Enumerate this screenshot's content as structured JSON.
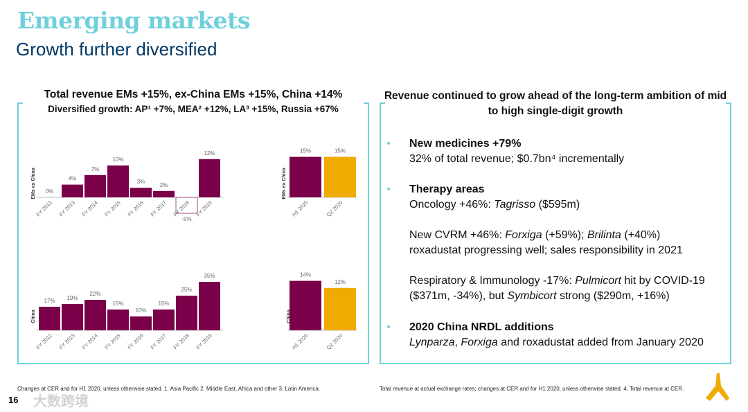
{
  "slide": {
    "title": "Emerging markets",
    "subtitle": "Growth further diversified",
    "page_number": "16",
    "watermark": "大数跨境"
  },
  "left": {
    "heading1": "Total revenue EMs +15%, ex-China EMs +15%, China +14%",
    "heading2": "Diversified growth: AP¹ +7%, MEA² +12%, LA³ +15%, Russia +67%"
  },
  "right": {
    "heading": "Revenue continued to grow ahead of the long-term ambition of mid to high single-digit growth",
    "bullets": [
      {
        "title": "New medicines +79%",
        "lines": [
          "32% of total revenue; $0.7bn⁴ incrementally"
        ]
      },
      {
        "title": "Therapy areas",
        "parts": [
          {
            "pre": "Oncology +46%: ",
            "it": "Tagrisso",
            "post": " ($595m)"
          },
          {
            "pre": "New CVRM +46%: ",
            "it": "Forxiga",
            "post": " (+59%); ",
            "it2": "Brilinta",
            "post2": " (+40%)"
          },
          {
            "pre": "roxadustat progressing well; sales responsibility in 2021"
          },
          {
            "pre": "Respiratory & Immunology -17%: ",
            "it": "Pulmicort",
            "post": " hit by COVID-19"
          },
          {
            "pre": "($371m, -34%), but ",
            "it": "Symbicort",
            "post": " strong ($290m, +16%)"
          }
        ]
      },
      {
        "title": "2020 China NRDL additions",
        "line_it1": "Lynparza",
        "line_sep": ", ",
        "line_it2": "Forxiga",
        "line_post": " and roxadustat added from January 2020"
      }
    ]
  },
  "footnotes": {
    "left": "Changes at CER and for H1 2020, unless otherwise stated. 1. Asia Pacific  2. Middle East, Africa and other  3. Latin America.",
    "right": "Total revenue at actual exchange rates; changes at CER and for H1 2020, unless otherwise stated. 4. Total revenue at CER."
  },
  "colors": {
    "accent": "#6fd0dc",
    "bar": "#7a0049",
    "highlight": "#f0ab00",
    "navy": "#003865"
  },
  "chart_data": [
    {
      "type": "bar",
      "ylabel": "EMs ex China",
      "categories": [
        "FY 2012",
        "FY 2013",
        "FY 2014",
        "FY 2015",
        "FY 2016",
        "FY 2017",
        "FY 2018",
        "FY 2019"
      ],
      "values": [
        0,
        4,
        7,
        10,
        3,
        2,
        -5,
        12
      ],
      "labels": [
        "0%",
        "4%",
        "7%",
        "10%",
        "3%",
        "2%",
        "-5%",
        "12%"
      ],
      "unit": "%"
    },
    {
      "type": "bar",
      "ylabel": "EMs ex China",
      "categories": [
        "H1 2020",
        "Q2 2020"
      ],
      "values": [
        15,
        15
      ],
      "labels": [
        "15%",
        "15%"
      ],
      "unit": "%"
    },
    {
      "type": "bar",
      "ylabel": "China",
      "categories": [
        "FY 2012",
        "FY 2013",
        "FY 2014",
        "FY 2015",
        "FY 2016",
        "FY 2017",
        "FY 2018",
        "FY 2019"
      ],
      "values": [
        17,
        19,
        22,
        15,
        10,
        15,
        25,
        35
      ],
      "labels": [
        "17%",
        "19%",
        "22%",
        "15%",
        "10%",
        "15%",
        "25%",
        "35%"
      ],
      "unit": "%"
    },
    {
      "type": "bar",
      "ylabel": "China",
      "categories": [
        "H1 2020",
        "Q2 2020"
      ],
      "values": [
        14,
        12
      ],
      "labels": [
        "14%",
        "12%"
      ],
      "unit": "%"
    }
  ]
}
